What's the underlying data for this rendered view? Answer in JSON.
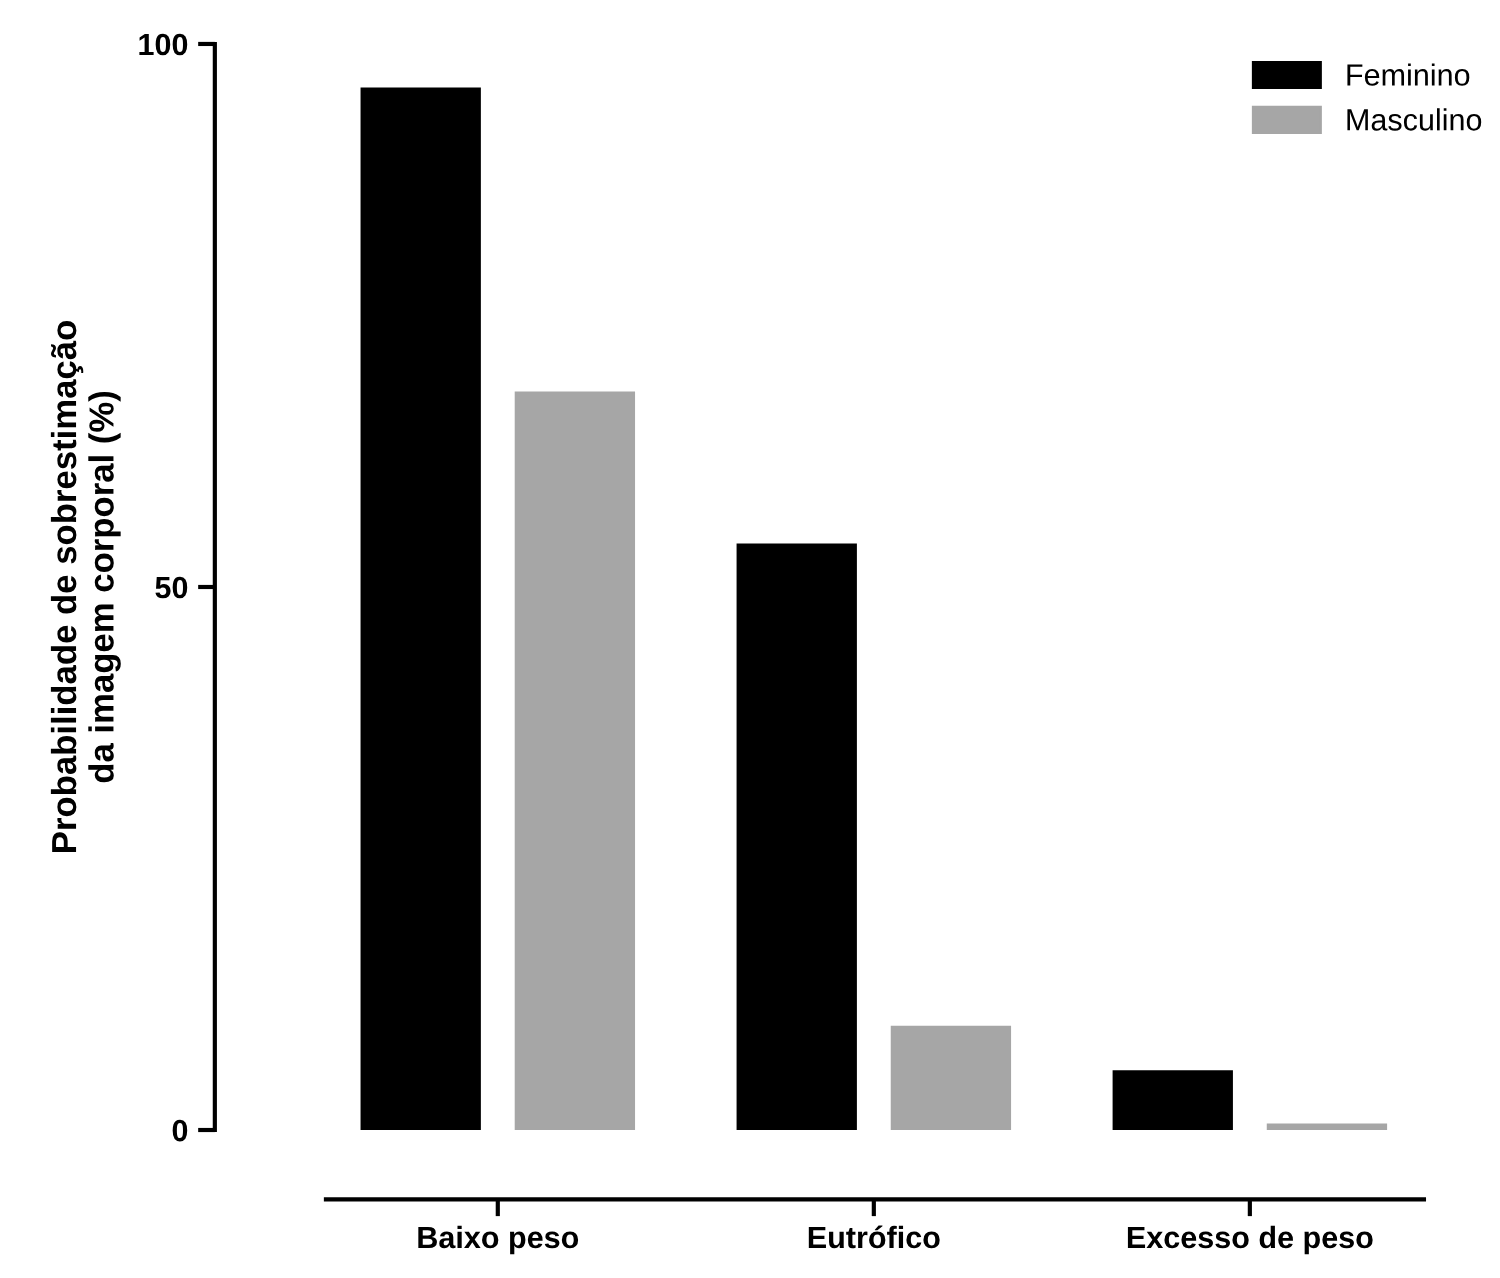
{
  "chart_data": {
    "type": "bar",
    "ylabel": "Probabilidade de sobrestimação\nda imagem corporal (%)",
    "categories": [
      "Baixo peso",
      "Eutrófico",
      "Excesso de peso"
    ],
    "series": [
      {
        "name": "Feminino",
        "color": "#000000",
        "values": [
          96,
          54,
          5.5
        ]
      },
      {
        "name": "Masculino",
        "color": "#a6a6a6",
        "values": [
          68,
          9.6,
          0.6
        ]
      }
    ],
    "ylim": [
      0,
      100
    ],
    "yticks": [
      0,
      50,
      100
    ],
    "grid": false,
    "legend": "top right"
  }
}
